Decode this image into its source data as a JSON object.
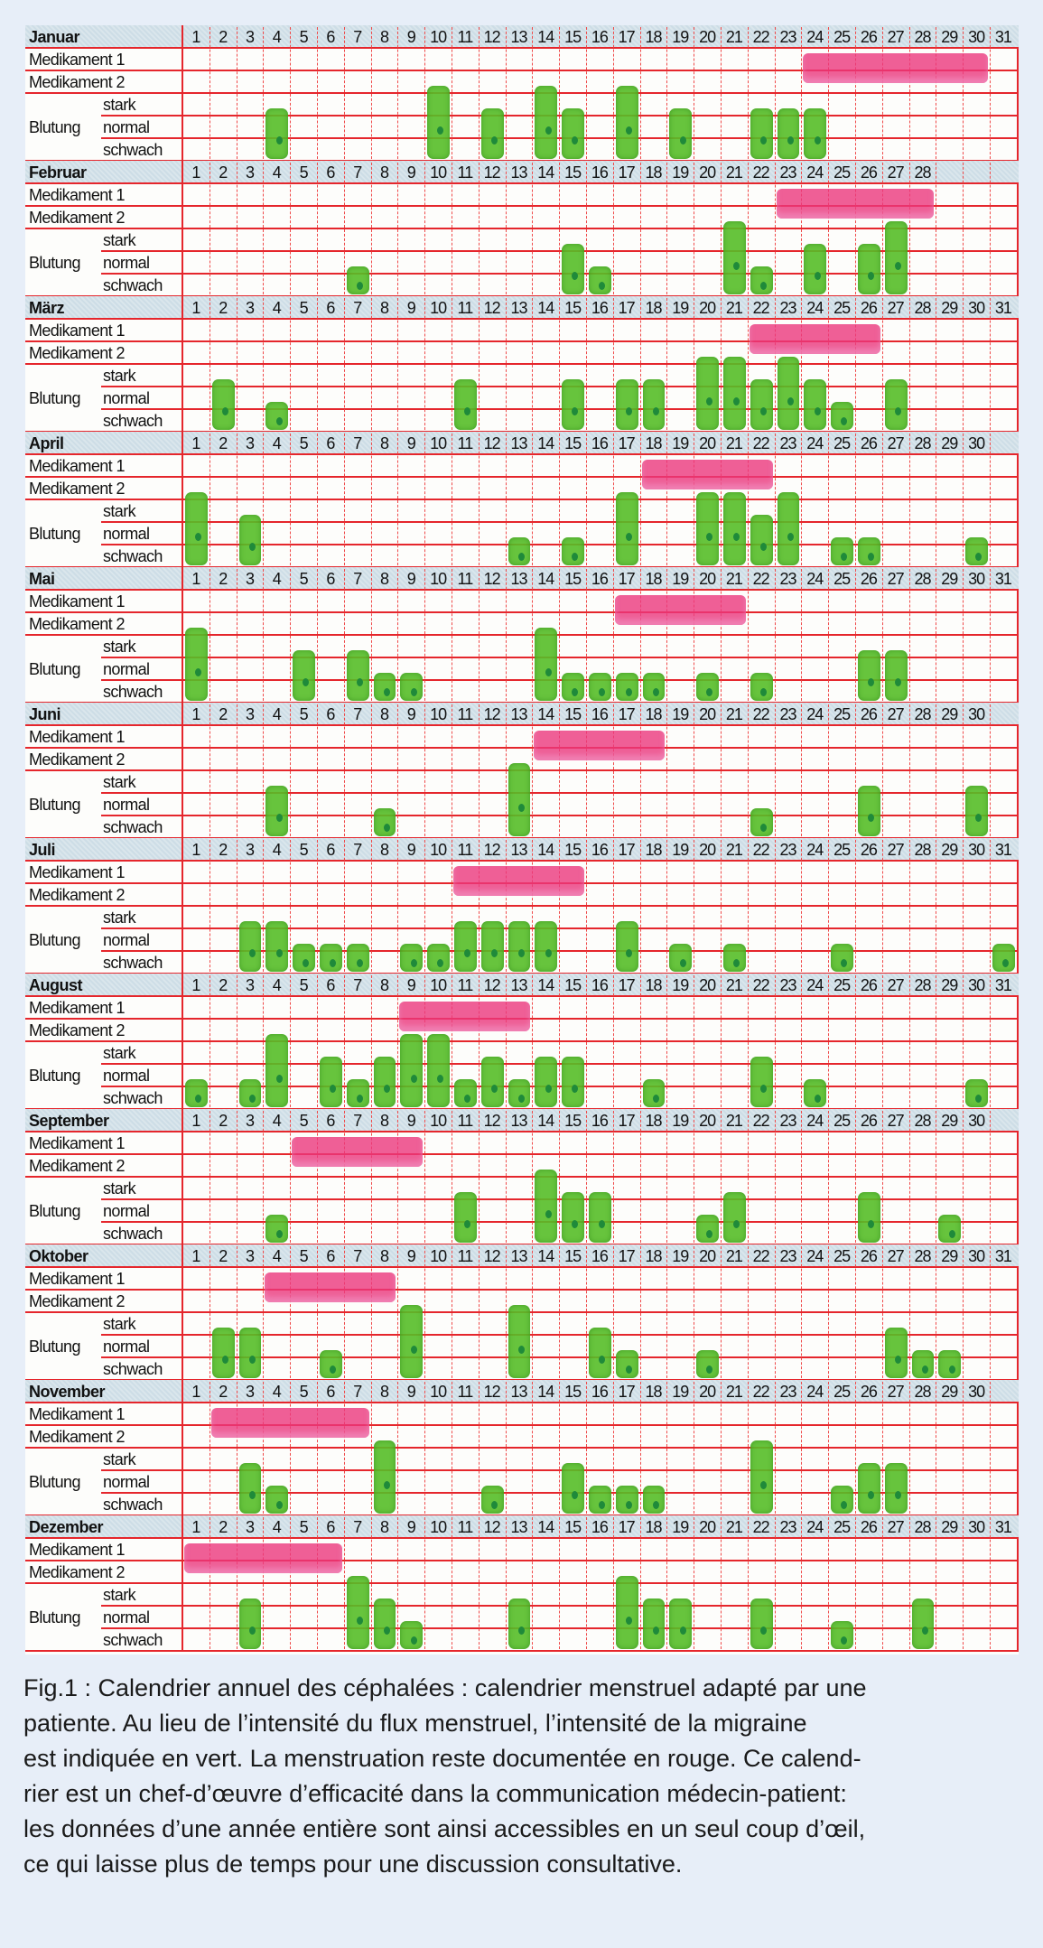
{
  "row_labels": {
    "med1": "Medikament 1",
    "med2": "Medikament 2",
    "bleeding": "Blutung",
    "stark": "stark",
    "normal": "normal",
    "schwach": "schwach"
  },
  "day_labels": [
    "1",
    "2",
    "3",
    "4",
    "5",
    "6",
    "7",
    "8",
    "9",
    "10",
    "11",
    "12",
    "13",
    "14",
    "15",
    "16",
    "17",
    "18",
    "19",
    "20",
    "21",
    "22",
    "23",
    "24",
    "25",
    "26",
    "27",
    "28",
    "29",
    "30",
    "31"
  ],
  "colors": {
    "grid": "#e5262c",
    "migraine": "#56be28",
    "medication": "#eb377d",
    "header": "#cddde6"
  },
  "legend_note": "bleeding level scale: 1 = schwach, 2 = normal, 3 = stark",
  "months": [
    {
      "name": "Januar",
      "days": 31,
      "med1": [
        24,
        30
      ],
      "bleeding": {
        "4": 2,
        "10": 3,
        "12": 2,
        "14": 3,
        "15": 2,
        "17": 3,
        "19": 2,
        "22": 2,
        "23": 2,
        "24": 2
      }
    },
    {
      "name": "Februar",
      "days": 28,
      "med1": [
        23,
        28
      ],
      "bleeding": {
        "7": 1,
        "15": 2,
        "16": 1,
        "21": 3,
        "22": 1,
        "24": 2,
        "26": 2,
        "27": 3
      }
    },
    {
      "name": "März",
      "days": 31,
      "med1": [
        22,
        26
      ],
      "bleeding": {
        "2": 2,
        "4": 1,
        "11": 2,
        "15": 2,
        "17": 2,
        "18": 2,
        "20": 3,
        "21": 3,
        "22": 2,
        "23": 3,
        "24": 2,
        "25": 1,
        "27": 2
      }
    },
    {
      "name": "April",
      "days": 30,
      "med1": [
        18,
        22
      ],
      "bleeding": {
        "1": 3,
        "3": 2,
        "13": 1,
        "15": 1,
        "17": 3,
        "20": 3,
        "21": 3,
        "22": 2,
        "23": 3,
        "25": 1,
        "26": 1,
        "30": 1
      }
    },
    {
      "name": "Mai",
      "days": 31,
      "med1": [
        17,
        21
      ],
      "bleeding": {
        "1": 3,
        "5": 2,
        "7": 2,
        "8": 1,
        "9": 1,
        "14": 3,
        "15": 1,
        "16": 1,
        "17": 1,
        "18": 1,
        "20": 1,
        "22": 1,
        "26": 2,
        "27": 2
      }
    },
    {
      "name": "Juni",
      "days": 30,
      "med1": [
        14,
        18
      ],
      "bleeding": {
        "4": 2,
        "8": 1,
        "13": 3,
        "22": 1,
        "26": 2,
        "30": 2
      }
    },
    {
      "name": "Juli",
      "days": 31,
      "med1": [
        11,
        15
      ],
      "bleeding": {
        "3": 2,
        "4": 2,
        "5": 1,
        "6": 1,
        "7": 1,
        "9": 1,
        "10": 1,
        "11": 2,
        "12": 2,
        "13": 2,
        "14": 2,
        "17": 2,
        "19": 1,
        "21": 1,
        "25": 1,
        "31": 1
      }
    },
    {
      "name": "August",
      "days": 31,
      "med1": [
        9,
        13
      ],
      "bleeding": {
        "1": 1,
        "3": 1,
        "4": 3,
        "6": 2,
        "7": 1,
        "8": 2,
        "9": 3,
        "10": 3,
        "11": 1,
        "12": 2,
        "13": 1,
        "14": 2,
        "15": 2,
        "18": 1,
        "22": 2,
        "24": 1,
        "30": 1
      }
    },
    {
      "name": "September",
      "days": 30,
      "med1": [
        5,
        9
      ],
      "bleeding": {
        "4": 1,
        "11": 2,
        "14": 3,
        "15": 2,
        "16": 2,
        "20": 1,
        "21": 2,
        "26": 2,
        "29": 1
      }
    },
    {
      "name": "Oktober",
      "days": 31,
      "med1": [
        4,
        8
      ],
      "bleeding": {
        "2": 2,
        "3": 2,
        "6": 1,
        "9": 3,
        "13": 3,
        "16": 2,
        "17": 1,
        "20": 1,
        "27": 2,
        "28": 1,
        "29": 1
      }
    },
    {
      "name": "November",
      "days": 30,
      "med1": [
        2,
        7
      ],
      "bleeding": {
        "3": 2,
        "4": 1,
        "8": 3,
        "12": 1,
        "15": 2,
        "16": 1,
        "17": 1,
        "18": 1,
        "22": 3,
        "25": 1,
        "26": 2,
        "27": 2
      }
    },
    {
      "name": "Dezember",
      "days": 31,
      "med1": [
        1,
        6
      ],
      "bleeding": {
        "3": 2,
        "7": 3,
        "8": 2,
        "9": 1,
        "13": 2,
        "17": 3,
        "18": 2,
        "19": 2,
        "22": 2,
        "25": 1,
        "28": 2
      }
    }
  ],
  "caption": [
    "Fig.1 : Calendrier annuel des céphalées : calendrier menstruel adapté par une",
    "patiente. Au lieu de l’intensité du flux menstruel, l’intensité de la migraine",
    "est indiquée en vert. La menstruation reste documentée en rouge. Ce calend-",
    "rier est un chef-d’œuvre d’efficacité dans la communication médecin-patient:",
    "les données d’une année entière sont ainsi accessibles en un seul coup d’œil,",
    "ce qui laisse plus de temps pour une discussion consultative."
  ]
}
